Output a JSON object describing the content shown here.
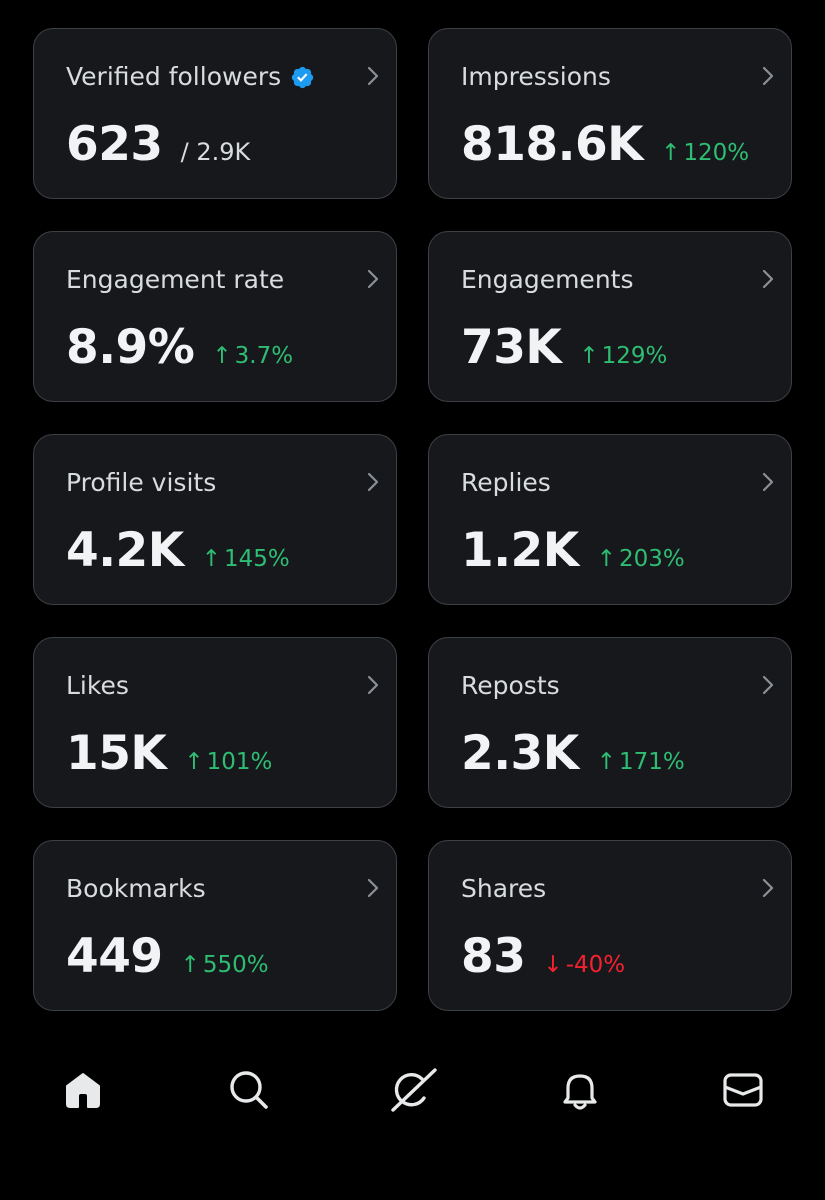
{
  "cards": [
    {
      "title": "Verified followers",
      "verified": true,
      "value": "623",
      "suffix": "/ 2.9K",
      "arrow": "",
      "change": "",
      "direction": "none"
    },
    {
      "title": "Impressions",
      "verified": false,
      "value": "818.6K",
      "suffix": "",
      "arrow": "↑",
      "change": "120%",
      "direction": "up"
    },
    {
      "title": "Engagement rate",
      "verified": false,
      "value": "8.9%",
      "suffix": "",
      "arrow": "↑",
      "change": "3.7%",
      "direction": "up"
    },
    {
      "title": "Engagements",
      "verified": false,
      "value": "73K",
      "suffix": "",
      "arrow": "↑",
      "change": "129%",
      "direction": "up"
    },
    {
      "title": "Profile visits",
      "verified": false,
      "value": "4.2K",
      "suffix": "",
      "arrow": "↑",
      "change": "145%",
      "direction": "up"
    },
    {
      "title": "Replies",
      "verified": false,
      "value": "1.2K",
      "suffix": "",
      "arrow": "↑",
      "change": "203%",
      "direction": "up"
    },
    {
      "title": "Likes",
      "verified": false,
      "value": "15K",
      "suffix": "",
      "arrow": "↑",
      "change": "101%",
      "direction": "up"
    },
    {
      "title": "Reposts",
      "verified": false,
      "value": "2.3K",
      "suffix": "",
      "arrow": "↑",
      "change": "171%",
      "direction": "up"
    },
    {
      "title": "Bookmarks",
      "verified": false,
      "value": "449",
      "suffix": "",
      "arrow": "↑",
      "change": "550%",
      "direction": "up"
    },
    {
      "title": "Shares",
      "verified": false,
      "value": "83",
      "suffix": "",
      "arrow": "↓",
      "change": "-40%",
      "direction": "down"
    }
  ],
  "nav": {
    "icons": [
      "home-icon",
      "search-icon",
      "grok-icon",
      "notifications-bell-icon",
      "messages-envelope-icon"
    ]
  },
  "colors": {
    "background": "#000000",
    "card_bg": "#17181c",
    "card_border": "#3c4045",
    "positive": "#2ebd73",
    "negative": "#f4212e",
    "verified_badge": "#1d9bf0"
  }
}
